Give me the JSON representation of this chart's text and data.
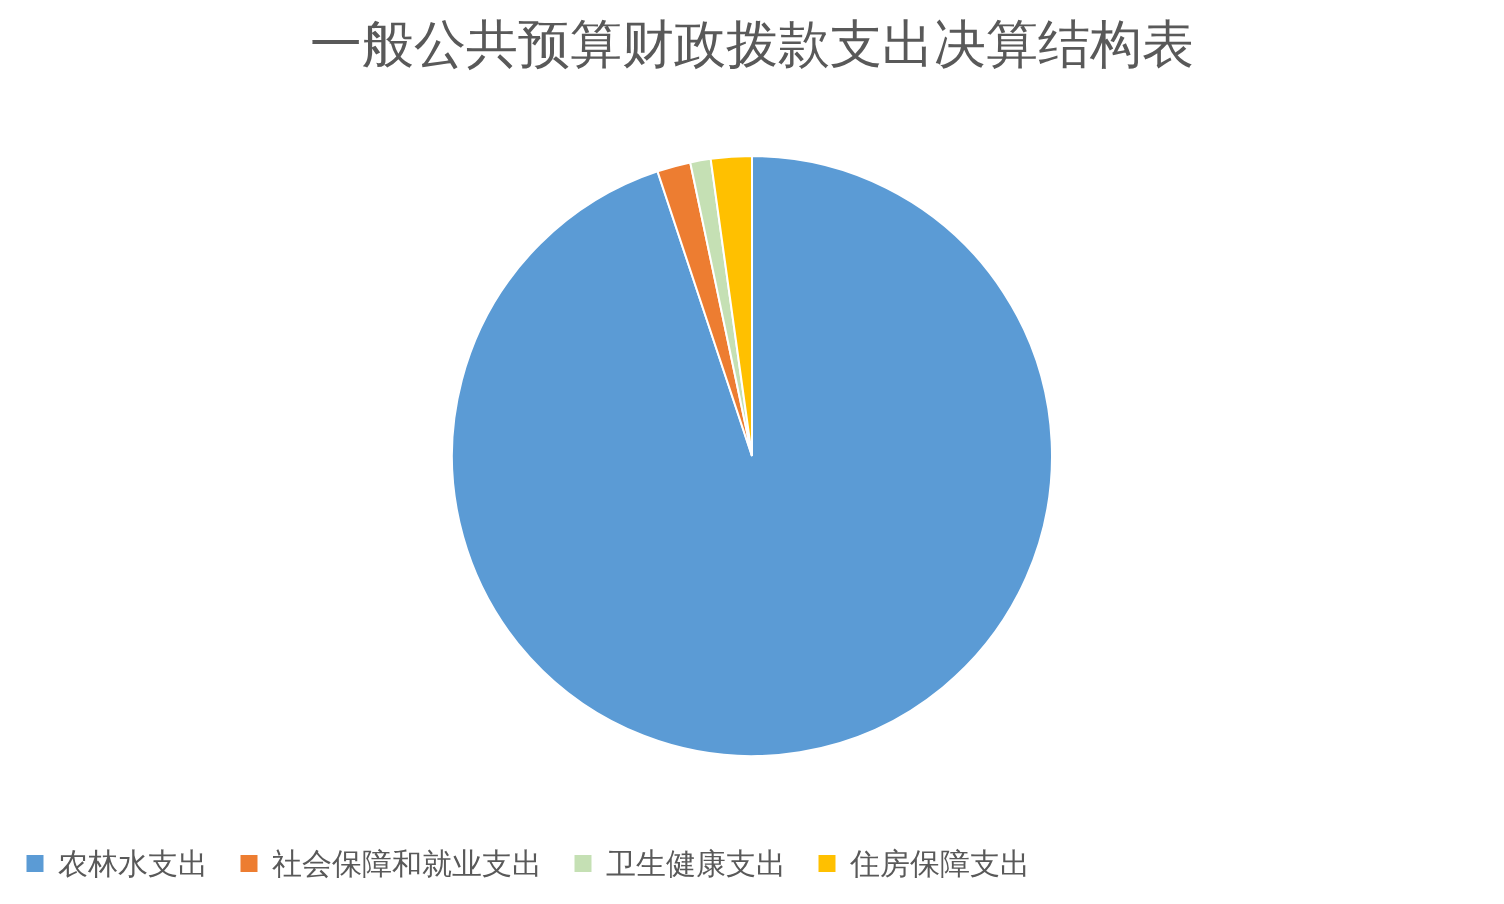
{
  "chart_data": {
    "type": "pie",
    "title": "一般公共预算财政拨款支出决算结构表",
    "categories": [
      "农林水支出",
      "社会保障和就业支出",
      "卫生健康支出",
      "住房保障支出"
    ],
    "values": [
      94.9,
      1.8,
      1.1,
      2.2
    ],
    "colors": [
      "#5b9bd5",
      "#ed7d31",
      "#c5e0b4",
      "#ffc000"
    ],
    "legend": "bottom"
  }
}
